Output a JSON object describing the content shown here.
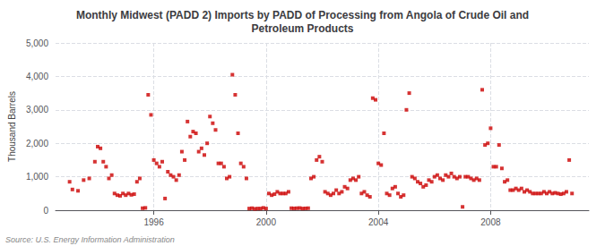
{
  "chart_data": {
    "type": "scatter",
    "title": "Monthly Midwest (PADD 2) Imports by PADD of Processing from Angola of Crude Oil and\nPetroleum Products",
    "ylabel": "Thousand Barrels",
    "annotations": [
      "Source: U.S. Energy Information Administration"
    ],
    "color": "#cc0000",
    "marker": "square",
    "grid": true,
    "xlim": [
      1992.5,
      2011.5
    ],
    "xticks": [
      1996,
      2000,
      2004,
      2008
    ],
    "ylim": [
      0,
      5000
    ],
    "yticks": [
      0,
      {
        "value": 1000,
        "label": "1,000"
      },
      {
        "value": 2000,
        "label": "2,000"
      },
      {
        "value": 3000,
        "label": "3,000"
      },
      {
        "value": 4000,
        "label": "4,000"
      },
      {
        "value": 5000,
        "label": "5,000"
      }
    ],
    "x": [
      1993.0,
      1993.1,
      1993.3,
      1993.5,
      1993.7,
      1993.9,
      1994.0,
      1994.1,
      1994.2,
      1994.3,
      1994.4,
      1994.5,
      1994.6,
      1994.7,
      1994.8,
      1994.9,
      1995.0,
      1995.1,
      1995.2,
      1995.3,
      1995.4,
      1995.5,
      1995.6,
      1995.7,
      1995.8,
      1995.9,
      1996.0,
      1996.1,
      1996.2,
      1996.3,
      1996.4,
      1996.5,
      1996.6,
      1996.7,
      1996.8,
      1996.9,
      1997.0,
      1997.1,
      1997.2,
      1997.3,
      1997.4,
      1997.5,
      1997.6,
      1997.7,
      1997.8,
      1997.9,
      1998.0,
      1998.1,
      1998.2,
      1998.3,
      1998.4,
      1998.5,
      1998.6,
      1998.7,
      1998.8,
      1998.9,
      1999.0,
      1999.1,
      1999.2,
      1999.3,
      1999.4,
      1999.5,
      1999.6,
      1999.7,
      1999.8,
      1999.9,
      2000.0,
      2000.1,
      2000.2,
      2000.3,
      2000.4,
      2000.5,
      2000.6,
      2000.7,
      2000.8,
      2000.9,
      2001.0,
      2001.1,
      2001.2,
      2001.3,
      2001.4,
      2001.5,
      2001.6,
      2001.7,
      2001.8,
      2001.9,
      2002.0,
      2002.1,
      2002.2,
      2002.3,
      2002.4,
      2002.5,
      2002.6,
      2002.7,
      2002.8,
      2002.9,
      2003.0,
      2003.1,
      2003.2,
      2003.3,
      2003.4,
      2003.5,
      2003.6,
      2003.7,
      2003.8,
      2003.9,
      2004.0,
      2004.1,
      2004.2,
      2004.3,
      2004.4,
      2004.5,
      2004.6,
      2004.7,
      2004.8,
      2004.9,
      2005.0,
      2005.1,
      2005.2,
      2005.3,
      2005.4,
      2005.5,
      2005.6,
      2005.7,
      2005.8,
      2005.9,
      2006.0,
      2006.1,
      2006.2,
      2006.3,
      2006.4,
      2006.5,
      2006.6,
      2006.7,
      2006.8,
      2006.9,
      2007.0,
      2007.1,
      2007.2,
      2007.3,
      2007.4,
      2007.5,
      2007.6,
      2007.7,
      2007.8,
      2007.9,
      2008.0,
      2008.1,
      2008.2,
      2008.3,
      2008.4,
      2008.5,
      2008.6,
      2008.7,
      2008.8,
      2008.9,
      2009.0,
      2009.1,
      2009.2,
      2009.3,
      2009.4,
      2009.5,
      2009.6,
      2009.7,
      2009.8,
      2009.9,
      2010.0,
      2010.1,
      2010.2,
      2010.3,
      2010.4,
      2010.5,
      2010.6,
      2010.7,
      2010.8,
      2010.9
    ],
    "values": [
      850,
      620,
      580,
      900,
      950,
      1450,
      1900,
      1850,
      1450,
      1300,
      950,
      1050,
      500,
      450,
      430,
      500,
      450,
      500,
      460,
      480,
      850,
      950,
      60,
      70,
      3450,
      2850,
      1500,
      1400,
      1300,
      1450,
      350,
      1150,
      1050,
      1000,
      900,
      1050,
      1750,
      1500,
      2650,
      2200,
      2350,
      2300,
      1750,
      1850,
      1650,
      2000,
      2800,
      2600,
      2400,
      1400,
      1400,
      1300,
      950,
      1000,
      4050,
      3450,
      2300,
      1400,
      1300,
      950,
      50,
      60,
      40,
      50,
      50,
      70,
      50,
      500,
      450,
      480,
      550,
      500,
      500,
      500,
      550,
      60,
      55,
      60,
      65,
      50,
      55,
      60,
      950,
      1000,
      1500,
      1600,
      1450,
      550,
      500,
      450,
      500,
      600,
      500,
      550,
      700,
      650,
      900,
      950,
      900,
      1000,
      500,
      550,
      450,
      400,
      3350,
      3300,
      1400,
      1350,
      2300,
      500,
      450,
      650,
      700,
      500,
      400,
      450,
      3000,
      3500,
      1000,
      950,
      850,
      800,
      700,
      750,
      900,
      850,
      1000,
      1050,
      950,
      900,
      1050,
      1000,
      1100,
      1000,
      950,
      1000,
      100,
      1000,
      1000,
      950,
      900,
      950,
      900,
      3600,
      1950,
      2000,
      2450,
      1300,
      1300,
      1950,
      1250,
      850,
      900,
      600,
      600,
      650,
      600,
      650,
      550,
      600,
      550,
      500,
      500,
      500,
      500,
      550,
      500,
      550,
      500,
      520,
      500,
      480,
      500,
      550,
      1500,
      500
    ]
  }
}
